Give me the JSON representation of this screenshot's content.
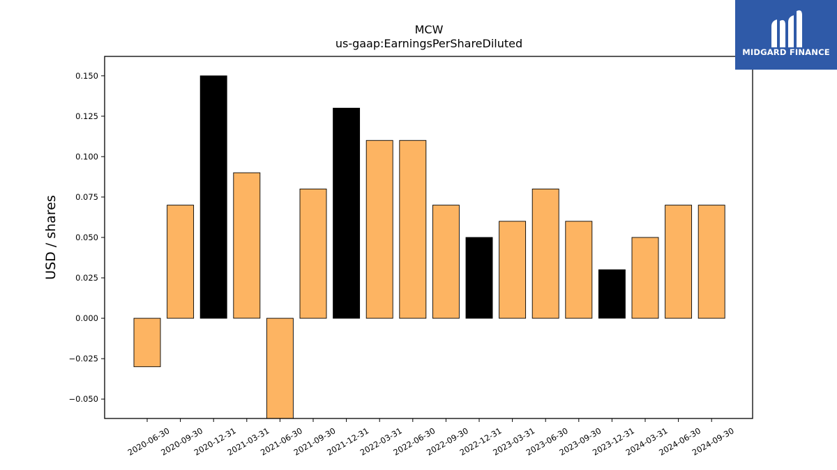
{
  "chart_data": {
    "type": "bar",
    "title": "MCW",
    "subtitle": "us-gaap:EarningsPerShareDiluted",
    "xlabel": "",
    "ylabel": "USD / shares",
    "ylim": [
      -0.062,
      0.162
    ],
    "yticks": [
      -0.05,
      -0.025,
      0.0,
      0.025,
      0.05,
      0.075,
      0.1,
      0.125,
      0.15
    ],
    "ytick_labels": [
      "−0.050",
      "−0.025",
      "0.000",
      "0.025",
      "0.050",
      "0.075",
      "0.100",
      "0.125",
      "0.150"
    ],
    "grid": false,
    "categories": [
      "2020-06-30",
      "2020-09-30",
      "2020-12-31",
      "2021-03-31",
      "2021-06-30",
      "2021-09-30",
      "2021-12-31",
      "2022-03-31",
      "2022-06-30",
      "2022-09-30",
      "2022-12-31",
      "2023-03-31",
      "2023-06-30",
      "2023-09-30",
      "2023-12-31",
      "2024-03-31",
      "2024-06-30",
      "2024-09-30"
    ],
    "values": [
      -0.03,
      0.07,
      0.15,
      0.09,
      -0.07,
      0.08,
      0.13,
      0.11,
      0.11,
      0.07,
      0.05,
      0.06,
      0.08,
      0.06,
      0.03,
      0.05,
      0.07,
      0.07
    ],
    "bar_colors": [
      "#fdb462",
      "#fdb462",
      "#000000",
      "#fdb462",
      "#fdb462",
      "#fdb462",
      "#000000",
      "#fdb462",
      "#fdb462",
      "#fdb462",
      "#000000",
      "#fdb462",
      "#fdb462",
      "#fdb462",
      "#000000",
      "#fdb462",
      "#fdb462",
      "#fdb462"
    ]
  },
  "logo": {
    "text": "MIDGARD FINANCE",
    "background": "#2f5aa8"
  }
}
